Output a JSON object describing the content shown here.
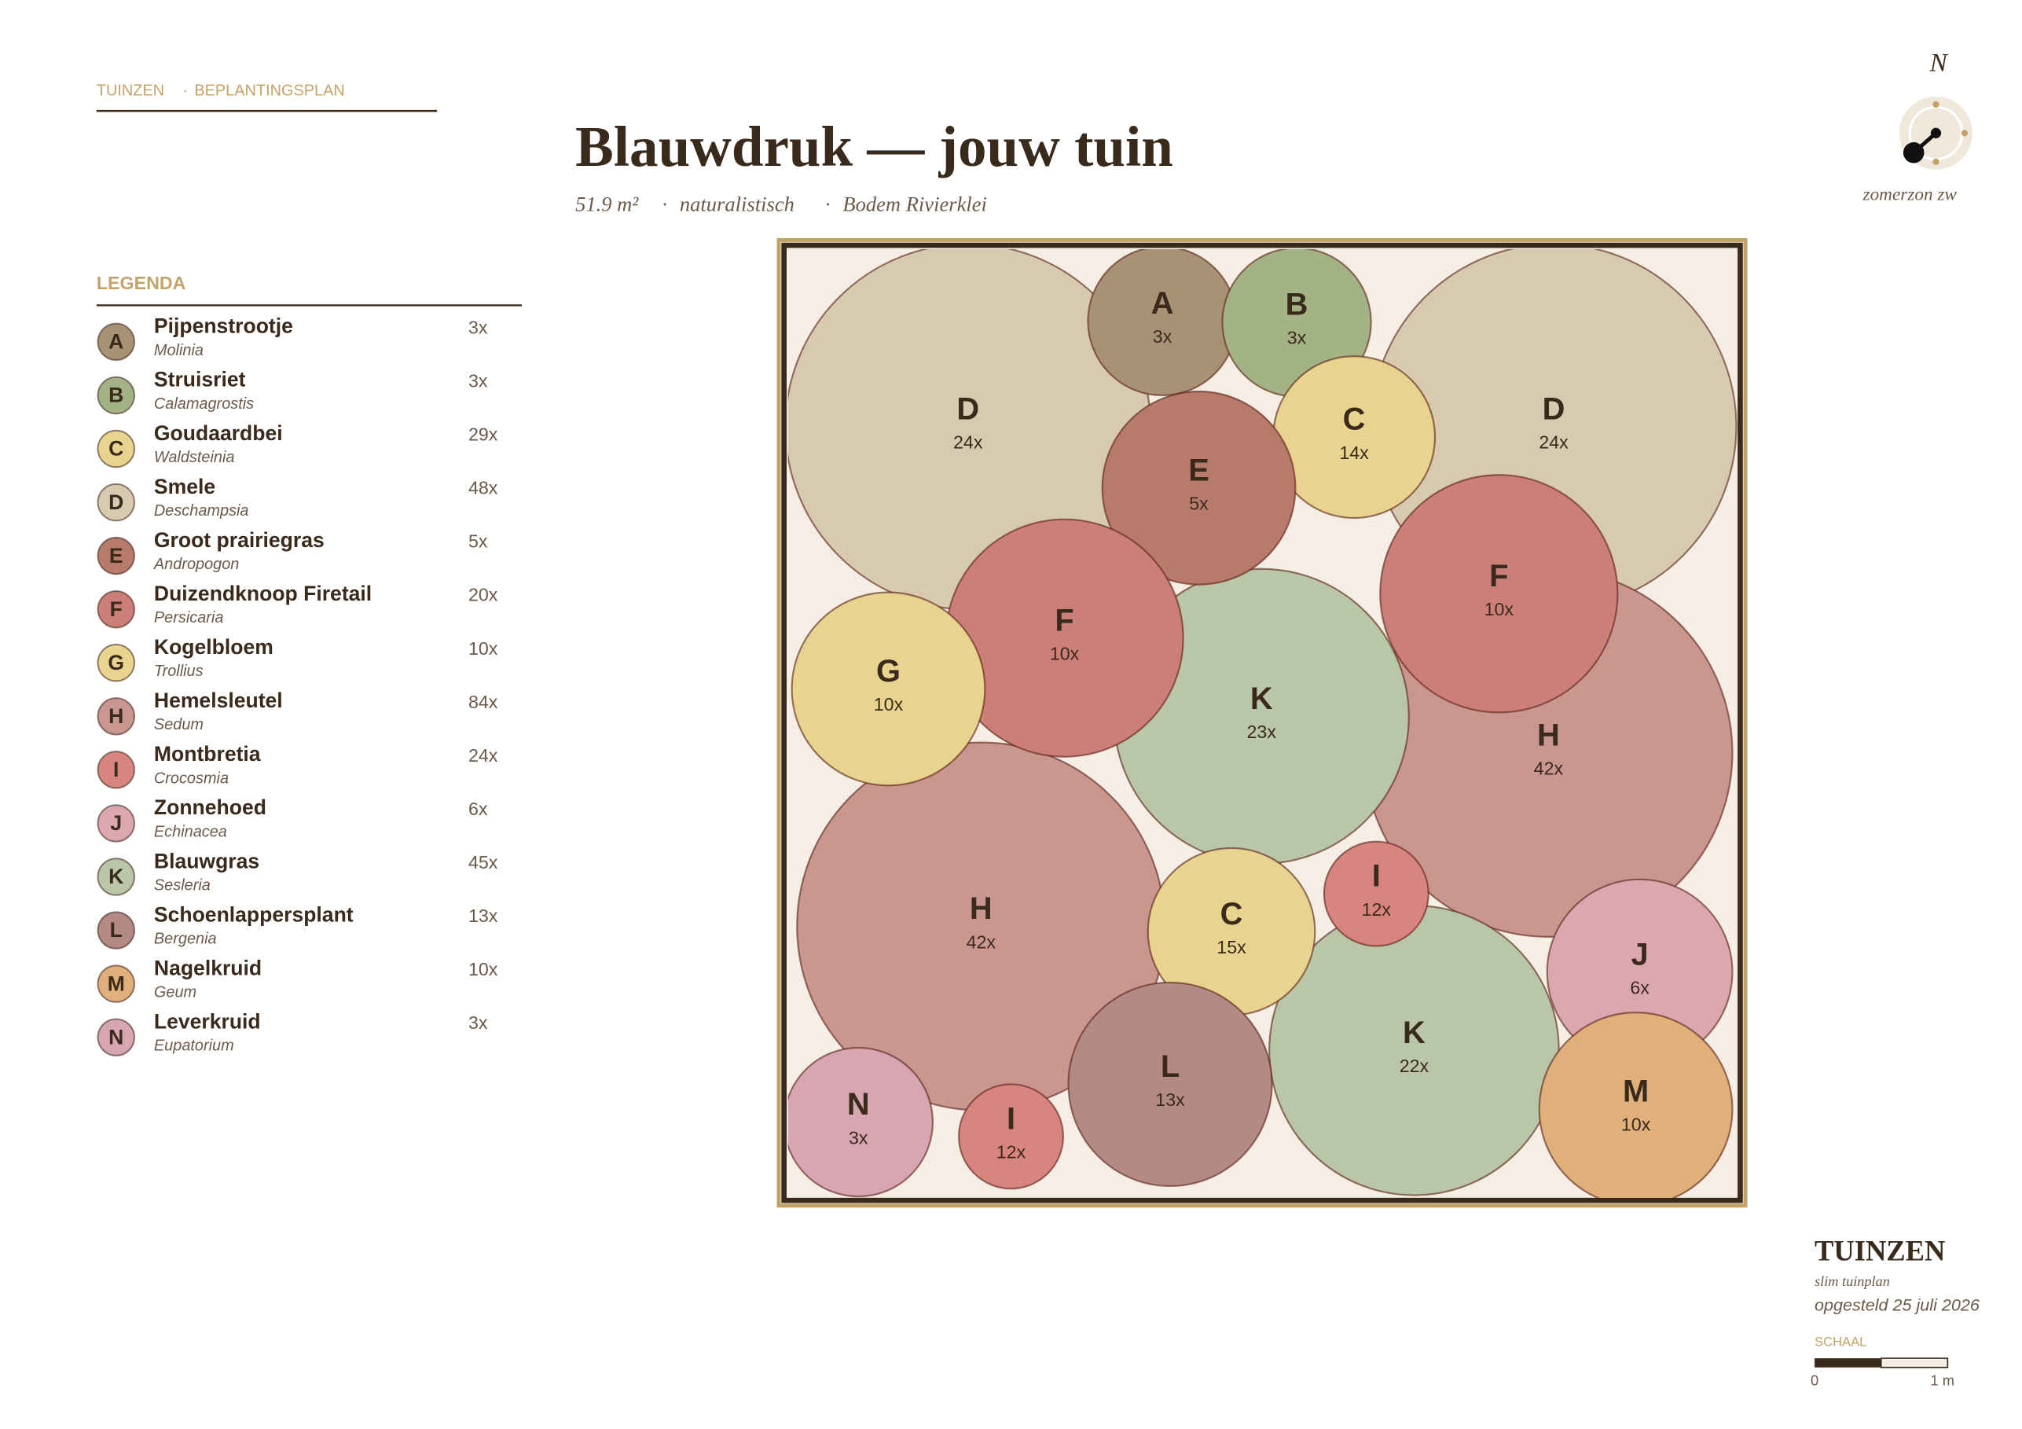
{
  "header": {
    "brand": "TUINZEN",
    "section": "BEPLANTINGSPLAN",
    "title": "Blauwdruk — jouw tuin",
    "area": "51.9 m²",
    "style": "naturalistisch",
    "soil": "Bodem Rivierklei"
  },
  "compass": {
    "north": "N",
    "sun": "zomerzon zw"
  },
  "legend": {
    "title": "LEGENDA",
    "items": [
      {
        "letter": "A",
        "name": "Pijpenstrootje",
        "latin": "Molinia",
        "count": "3x",
        "color": "#a89276"
      },
      {
        "letter": "B",
        "name": "Struisriet",
        "latin": "Calamagrostis",
        "count": "3x",
        "color": "#a3b386"
      },
      {
        "letter": "C",
        "name": "Goudaardbei",
        "latin": "Waldsteinia",
        "count": "29x",
        "color": "#e8d48e"
      },
      {
        "letter": "D",
        "name": "Smele",
        "latin": "Deschampsia",
        "count": "48x",
        "color": "#d8cab0"
      },
      {
        "letter": "E",
        "name": "Groot prairiegras",
        "latin": "Andropogon",
        "count": "5x",
        "color": "#b87b6b"
      },
      {
        "letter": "F",
        "name": "Duizendknoop Firetail",
        "latin": "Persicaria",
        "count": "20x",
        "color": "#cc7e78"
      },
      {
        "letter": "G",
        "name": "Kogelbloem",
        "latin": "Trollius",
        "count": "10x",
        "color": "#e8d48e"
      },
      {
        "letter": "H",
        "name": "Hemelsleutel",
        "latin": "Sedum",
        "count": "84x",
        "color": "#c99690"
      },
      {
        "letter": "I",
        "name": "Montbretia",
        "latin": "Crocosmia",
        "count": "24x",
        "color": "#d9857f"
      },
      {
        "letter": "J",
        "name": "Zonnehoed",
        "latin": "Echinacea",
        "count": "6x",
        "color": "#dba8b0"
      },
      {
        "letter": "K",
        "name": "Blauwgras",
        "latin": "Sesleria",
        "count": "45x",
        "color": "#bac6a8"
      },
      {
        "letter": "L",
        "name": "Schoenlappersplant",
        "latin": "Bergenia",
        "count": "13x",
        "color": "#b38a84"
      },
      {
        "letter": "M",
        "name": "Nagelkruid",
        "latin": "Geum",
        "count": "10x",
        "color": "#e0b07a"
      },
      {
        "letter": "N",
        "name": "Leverkruid",
        "latin": "Eupatorium",
        "count": "3x",
        "color": "#d6a6b2"
      }
    ]
  },
  "plan": {
    "circles": [
      {
        "letter": "D",
        "count": "24x"
      },
      {
        "letter": "D",
        "count": "24x"
      },
      {
        "letter": "H",
        "count": "42x"
      },
      {
        "letter": "H",
        "count": "42x"
      },
      {
        "letter": "K",
        "count": "23x"
      },
      {
        "letter": "K",
        "count": "22x"
      },
      {
        "letter": "A",
        "count": "3x"
      },
      {
        "letter": "B",
        "count": "3x"
      },
      {
        "letter": "C",
        "count": "14x"
      },
      {
        "letter": "E",
        "count": "5x"
      },
      {
        "letter": "F",
        "count": "10x"
      },
      {
        "letter": "F",
        "count": "10x"
      },
      {
        "letter": "G",
        "count": "10x"
      },
      {
        "letter": "C",
        "count": "15x"
      },
      {
        "letter": "I",
        "count": "12x"
      },
      {
        "letter": "J",
        "count": "6x"
      },
      {
        "letter": "M",
        "count": "10x"
      },
      {
        "letter": "L",
        "count": "13x"
      },
      {
        "letter": "N",
        "count": "3x"
      },
      {
        "letter": "I",
        "count": "12x"
      }
    ]
  },
  "footer": {
    "brand": "TUINZEN",
    "tagline": "slim tuinplan",
    "date": "opgesteld 25 juli 2026",
    "scale_title": "SCHAAL",
    "scale_start": "0",
    "scale_end": "1 m"
  }
}
